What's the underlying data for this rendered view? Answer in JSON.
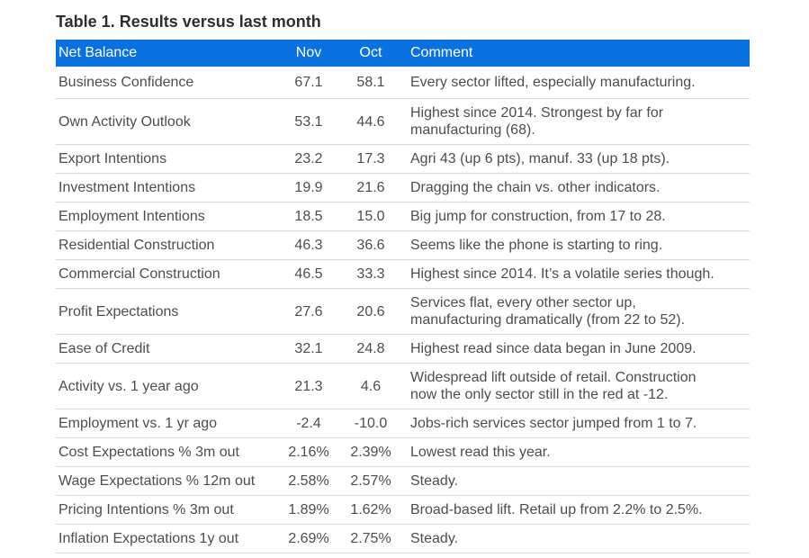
{
  "page": {
    "title": "Table 1. Results versus last month"
  },
  "table": {
    "columns": [
      {
        "label": "Net Balance",
        "align": "left"
      },
      {
        "label": "Nov",
        "align": "center"
      },
      {
        "label": "Oct",
        "align": "center"
      },
      {
        "label": "Comment",
        "align": "left"
      }
    ],
    "rows": [
      {
        "indicator": "Business Confidence",
        "nov": "67.1",
        "oct": "58.1",
        "comment": "Every sector lifted, especially manufacturing."
      },
      {
        "indicator": "Own Activity Outlook",
        "nov": "53.1",
        "oct": "44.6",
        "comment": "Highest since 2014. Strongest by far for\nmanufacturing (68)."
      },
      {
        "indicator": "Export Intentions",
        "nov": "23.2",
        "oct": "17.3",
        "comment": "Agri 43 (up 6 pts), manuf. 33 (up 18 pts)."
      },
      {
        "indicator": "Investment Intentions",
        "nov": "19.9",
        "oct": "21.6",
        "comment": "Dragging the chain vs. other indicators."
      },
      {
        "indicator": "Employment Intentions",
        "nov": "18.5",
        "oct": "15.0",
        "comment": "Big jump for construction, from 17 to 28."
      },
      {
        "indicator": "Residential Construction",
        "nov": "46.3",
        "oct": "36.6",
        "comment": "Seems like the phone is starting to ring."
      },
      {
        "indicator": "Commercial Construction",
        "nov": "46.5",
        "oct": "33.3",
        "comment": "Highest since 2014. It’s a volatile series though."
      },
      {
        "indicator": "Profit Expectations",
        "nov": "27.6",
        "oct": "20.6",
        "comment": "Services flat, every other sector up,\nmanufacturing dramatically (from 22 to 52)."
      },
      {
        "indicator": "Ease of Credit",
        "nov": "32.1",
        "oct": "24.8",
        "comment": "Highest read since data began in June 2009."
      },
      {
        "indicator": "Activity vs. 1 year ago",
        "nov": "21.3",
        "oct": "4.6",
        "comment": "Widespread lift outside of retail. Construction\nnow the only sector still in the red at -12."
      },
      {
        "indicator": "Employment vs. 1 yr ago",
        "nov": "-2.4",
        "oct": "-10.0",
        "comment": "Jobs-rich services sector jumped from 1 to 7."
      },
      {
        "indicator": "Cost Expectations % 3m out",
        "nov": "2.16%",
        "oct": "2.39%",
        "comment": "Lowest read this year."
      },
      {
        "indicator": "Wage Expectations % 12m out",
        "nov": "2.58%",
        "oct": "2.57%",
        "comment": "Steady."
      },
      {
        "indicator": "Pricing Intentions % 3m out",
        "nov": "1.89%",
        "oct": "1.62%",
        "comment": "Broad-based lift. Retail up from 2.2% to 2.5%."
      },
      {
        "indicator": "Inflation Expectations 1y out",
        "nov": "2.69%",
        "oct": "2.75%",
        "comment": "Steady."
      }
    ]
  },
  "colors": {
    "header_bg": "#0a72e0",
    "header_text": "#ffffff",
    "title_text": "#2e2e2e",
    "body_text": "#4d4d4d",
    "divider": "#d9d9d9",
    "background": "#ffffff"
  }
}
